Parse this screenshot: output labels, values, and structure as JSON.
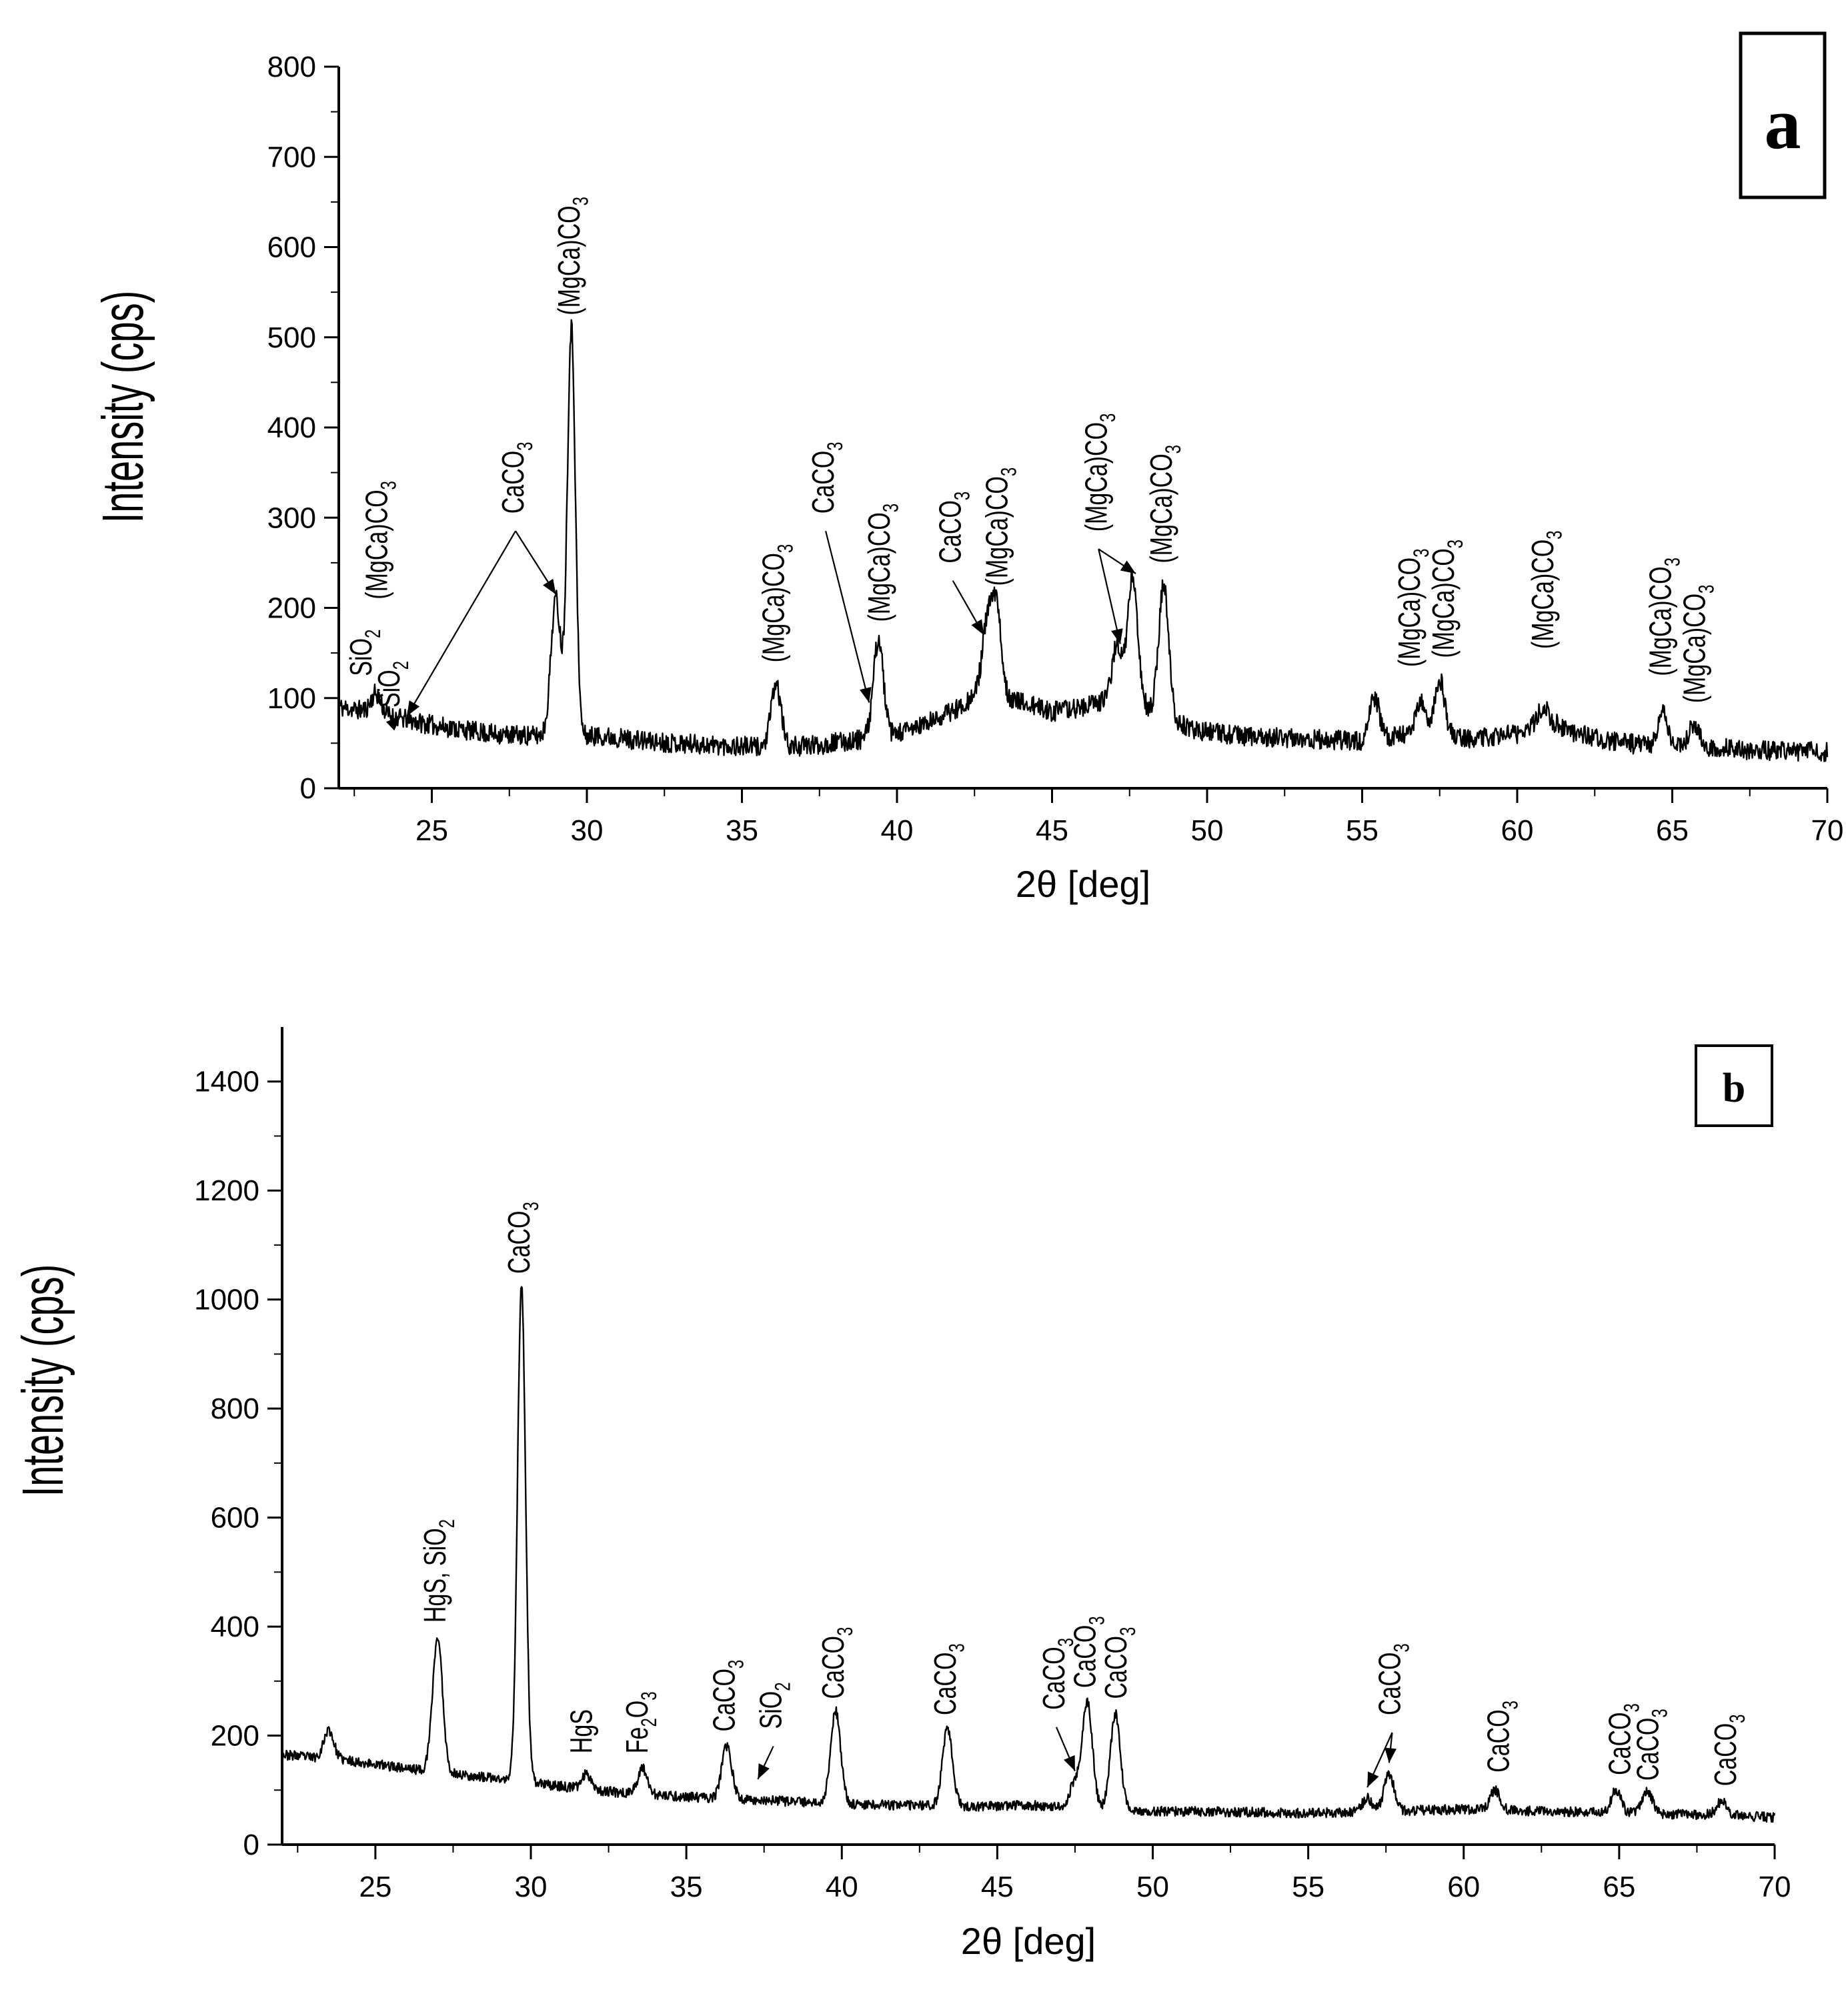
{
  "chart_data": [
    {
      "panel": "a",
      "type": "line",
      "xlabel": "2θ [deg]",
      "ylabel": "Intensity (cps)",
      "xlim": [
        22,
        70
      ],
      "ylim": [
        0,
        800
      ],
      "xticks": [
        25,
        30,
        35,
        40,
        45,
        50,
        55,
        60,
        65,
        70
      ],
      "yticks": [
        0,
        100,
        200,
        300,
        400,
        500,
        600,
        700,
        800
      ],
      "baseline": [
        [
          22,
          90
        ],
        [
          23,
          85
        ],
        [
          25,
          70
        ],
        [
          27,
          60
        ],
        [
          28.5,
          58
        ],
        [
          30.5,
          58
        ],
        [
          32,
          52
        ],
        [
          34,
          48
        ],
        [
          36,
          45
        ],
        [
          37.5,
          48
        ],
        [
          39,
          55
        ],
        [
          40,
          60
        ],
        [
          41,
          72
        ],
        [
          42,
          90
        ],
        [
          42.8,
          110
        ],
        [
          44,
          95
        ],
        [
          45,
          85
        ],
        [
          46,
          90
        ],
        [
          47,
          100
        ],
        [
          48,
          90
        ],
        [
          49.5,
          65
        ],
        [
          51,
          58
        ],
        [
          53,
          55
        ],
        [
          55,
          52
        ],
        [
          56,
          58
        ],
        [
          57,
          62
        ],
        [
          58.5,
          55
        ],
        [
          60,
          60
        ],
        [
          61,
          75
        ],
        [
          62,
          60
        ],
        [
          63,
          52
        ],
        [
          64,
          48
        ],
        [
          66,
          45
        ],
        [
          68,
          42
        ],
        [
          70,
          40
        ]
      ],
      "peaks": [
        {
          "x": 23.2,
          "y": 105
        },
        {
          "x": 29.0,
          "y": 210
        },
        {
          "x": 29.5,
          "y": 510
        },
        {
          "x": 36.1,
          "y": 115
        },
        {
          "x": 39.4,
          "y": 165
        },
        {
          "x": 42.9,
          "y": 175
        },
        {
          "x": 43.2,
          "y": 200
        },
        {
          "x": 47.1,
          "y": 160
        },
        {
          "x": 47.6,
          "y": 235
        },
        {
          "x": 48.6,
          "y": 225
        },
        {
          "x": 55.4,
          "y": 100
        },
        {
          "x": 56.9,
          "y": 95
        },
        {
          "x": 57.5,
          "y": 120
        },
        {
          "x": 60.8,
          "y": 90
        },
        {
          "x": 64.7,
          "y": 85
        },
        {
          "x": 65.7,
          "y": 70
        }
      ],
      "annotations": [
        {
          "label": "SiO2",
          "x": 22.8,
          "y": 120
        },
        {
          "label": "(MgCa)CO3",
          "x": 23.3,
          "y": 205
        },
        {
          "label": "SiO2",
          "x": 23.7,
          "y": 85,
          "arrow_to": [
            24,
            80
          ]
        },
        {
          "label": "CaCO3",
          "x": 27.7,
          "y": 300,
          "arrow_to": [
            24.2,
            80
          ]
        },
        {
          "label": "CaCO3",
          "x": 27.7,
          "y": 300,
          "arrow_to": [
            29.0,
            215
          ]
        },
        {
          "label": "(MgCa)CO3",
          "x": 29.5,
          "y": 520
        },
        {
          "label": "(MgCa)CO3",
          "x": 36.1,
          "y": 135
        },
        {
          "label": "(MgCa)CO3",
          "x": 39.5,
          "y": 180
        },
        {
          "label": "CaCO3",
          "x": 37.7,
          "y": 300,
          "arrow_to": [
            39.1,
            95
          ]
        },
        {
          "label": "CaCO3",
          "x": 41.8,
          "y": 245,
          "arrow_to": [
            42.8,
            170
          ]
        },
        {
          "label": "(MgCa)CO3",
          "x": 43.3,
          "y": 220
        },
        {
          "label": "(MgCa)CO3",
          "x": 46.5,
          "y": 280,
          "arrow_to": [
            47.2,
            160
          ]
        },
        {
          "label": "(MgCa)CO3",
          "x": 46.5,
          "y": 280,
          "arrow_to": [
            47.7,
            238
          ]
        },
        {
          "label": "(MgCa)CO3",
          "x": 48.6,
          "y": 245
        },
        {
          "label": "(MgCa)CO3",
          "x": 56.6,
          "y": 130
        },
        {
          "label": "(MgCa)CO3",
          "x": 57.7,
          "y": 140
        },
        {
          "label": "(MgCa)CO3",
          "x": 60.9,
          "y": 150
        },
        {
          "label": "(MgCa)CO3",
          "x": 64.7,
          "y": 120
        },
        {
          "label": "(MgCa)CO3",
          "x": 65.8,
          "y": 90
        }
      ]
    },
    {
      "panel": "b",
      "type": "line",
      "xlabel": "2θ [deg]",
      "ylabel": "Intensity (cps)",
      "xlim": [
        22,
        70
      ],
      "ylim": [
        0,
        1500
      ],
      "xticks": [
        25,
        30,
        35,
        40,
        45,
        50,
        55,
        60,
        65,
        70
      ],
      "yticks": [
        0,
        200,
        400,
        600,
        800,
        1000,
        1200,
        1400
      ],
      "baseline": [
        [
          22,
          165
        ],
        [
          24,
          155
        ],
        [
          26,
          140
        ],
        [
          27.5,
          130
        ],
        [
          29,
          120
        ],
        [
          30.5,
          110
        ],
        [
          32,
          100
        ],
        [
          34,
          90
        ],
        [
          36,
          85
        ],
        [
          38,
          80
        ],
        [
          40,
          75
        ],
        [
          42,
          72
        ],
        [
          44,
          70
        ],
        [
          46,
          72
        ],
        [
          48,
          68
        ],
        [
          50,
          62
        ],
        [
          55,
          58
        ],
        [
          60,
          65
        ],
        [
          62,
          62
        ],
        [
          65,
          58
        ],
        [
          68,
          55
        ],
        [
          70,
          50
        ]
      ],
      "peaks": [
        {
          "x": 23.5,
          "y": 210
        },
        {
          "x": 27.0,
          "y": 380
        },
        {
          "x": 29.7,
          "y": 1025
        },
        {
          "x": 31.8,
          "y": 130
        },
        {
          "x": 33.6,
          "y": 140
        },
        {
          "x": 36.3,
          "y": 180
        },
        {
          "x": 39.8,
          "y": 245
        },
        {
          "x": 43.4,
          "y": 215
        },
        {
          "x": 47.5,
          "y": 115
        },
        {
          "x": 47.9,
          "y": 260
        },
        {
          "x": 48.8,
          "y": 240
        },
        {
          "x": 56.9,
          "y": 85
        },
        {
          "x": 57.6,
          "y": 130
        },
        {
          "x": 61.0,
          "y": 100
        },
        {
          "x": 64.9,
          "y": 100
        },
        {
          "x": 65.9,
          "y": 100
        },
        {
          "x": 68.3,
          "y": 80
        }
      ],
      "annotations": [
        {
          "label": "HgS, SiO2",
          "x": 27.0,
          "y": 400
        },
        {
          "label": "CaCO3",
          "x": 29.7,
          "y": 1040
        },
        {
          "label": "HgS",
          "x": 31.7,
          "y": 160
        },
        {
          "label": "Fe2O3",
          "x": 33.5,
          "y": 160
        },
        {
          "label": "CaCO3",
          "x": 36.3,
          "y": 200
        },
        {
          "label": "SiO2",
          "x": 37.8,
          "y": 205,
          "arrow_to": [
            37.3,
            120
          ]
        },
        {
          "label": "CaCO3",
          "x": 39.8,
          "y": 260
        },
        {
          "label": "CaCO3",
          "x": 43.4,
          "y": 230
        },
        {
          "label": "CaCO3",
          "x": 46.9,
          "y": 240,
          "arrow_to": [
            47.5,
            135
          ]
        },
        {
          "label": "CaCO3",
          "x": 47.9,
          "y": 280
        },
        {
          "label": "CaCO3",
          "x": 48.9,
          "y": 260
        },
        {
          "label": "CaCO3",
          "x": 57.7,
          "y": 230,
          "arrow_to": [
            56.9,
            105
          ]
        },
        {
          "label": "CaCO3",
          "x": 57.7,
          "y": 230,
          "arrow_to": [
            57.6,
            150
          ]
        },
        {
          "label": "CaCO3",
          "x": 61.2,
          "y": 125
        },
        {
          "label": "CaCO3",
          "x": 65.1,
          "y": 120
        },
        {
          "label": "CaCO3",
          "x": 66.0,
          "y": 110
        },
        {
          "label": "CaCO3",
          "x": 68.5,
          "y": 100
        }
      ]
    }
  ]
}
